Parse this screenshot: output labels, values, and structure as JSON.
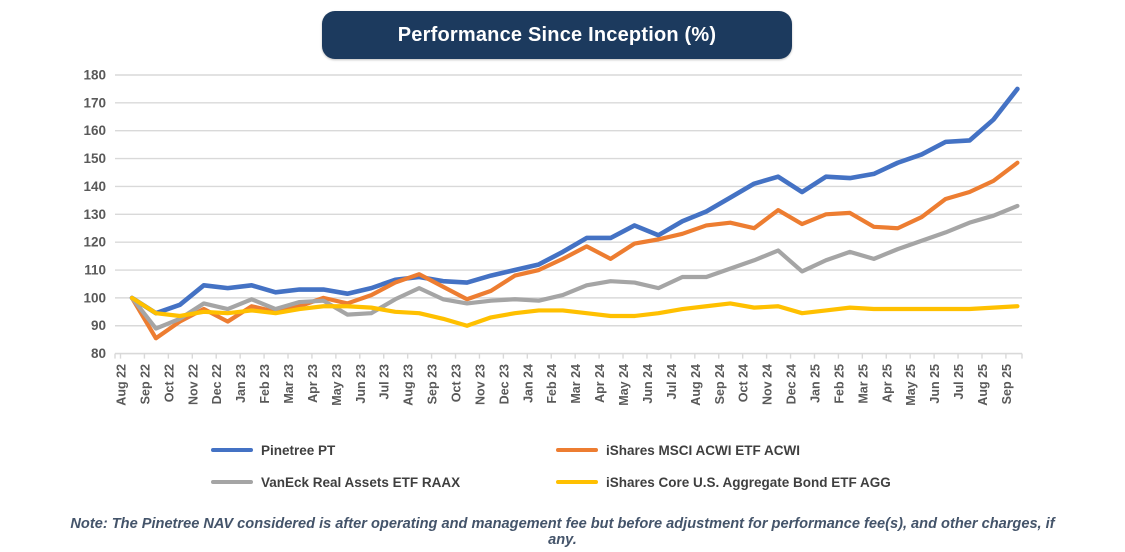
{
  "title": {
    "text": "Performance Since Inception (%)"
  },
  "note": "Note: The Pinetree NAV considered is after operating and management fee but before adjustment for performance fee(s), and other charges, if any.",
  "colors": {
    "title_bg": "#1C3A5E",
    "axis_text": "#595959",
    "gridline": "#D9D9D9",
    "note_text": "#44546A",
    "background": "#FFFFFF"
  },
  "chart_data": {
    "type": "line",
    "title": "Performance Since Inception (%)",
    "xlabel": "",
    "ylabel": "",
    "ylim": [
      80,
      180
    ],
    "y_tick_step": 10,
    "grid": true,
    "legend_position": "bottom",
    "categories": [
      "Aug 22",
      "Sep 22",
      "Oct 22",
      "Nov 22",
      "Dec 22",
      "Jan 23",
      "Feb 23",
      "Mar 23",
      "Apr 23",
      "May 23",
      "Jun 23",
      "Jul 23",
      "Aug 23",
      "Sep 23",
      "Oct 23",
      "Nov 23",
      "Dec 23",
      "Jan 24",
      "Feb 24",
      "Mar 24",
      "Apr 24",
      "May 24",
      "Jun 24",
      "Jul 24",
      "Aug 24",
      "Sep 24",
      "Oct 24",
      "Nov 24",
      "Dec 24",
      "Jan 25",
      "Feb 25",
      "Mar 25",
      "Apr 25",
      "May 25",
      "Jun 25",
      "Jul 25",
      "Aug 25",
      "Sep 25"
    ],
    "series": [
      {
        "name": "Pinetree PT",
        "color": "#4472C4",
        "values": [
          100,
          94.5,
          97.5,
          104.5,
          103.5,
          104.5,
          102,
          103,
          103,
          101.5,
          103.5,
          106.5,
          107.5,
          106,
          105.5,
          108,
          110,
          112,
          116.5,
          121.5,
          121.5,
          126,
          122.5,
          127.5,
          131,
          136,
          141,
          143.5,
          138,
          143.5,
          143,
          144.5,
          148.5,
          151.5,
          156,
          156.5,
          164,
          175
        ]
      },
      {
        "name": "iShares MSCI ACWI ETF ACWI",
        "color": "#ED7D31",
        "values": [
          100,
          85.5,
          91.5,
          96,
          91.5,
          97,
          95,
          97,
          100,
          98,
          101,
          105.5,
          108.5,
          104,
          99.5,
          102.5,
          108,
          110,
          114,
          118.5,
          114,
          119.5,
          121,
          123,
          126,
          127,
          125,
          131.5,
          126.5,
          130,
          130.5,
          125.5,
          125,
          129,
          135.5,
          138,
          142,
          148.5
        ]
      },
      {
        "name": "VanEck Real Assets ETF RAAX",
        "color": "#A5A5A5",
        "values": [
          100,
          89,
          92.5,
          98,
          96,
          99.5,
          96,
          98.5,
          99,
          94,
          94.5,
          99.5,
          103.5,
          99.5,
          98,
          99,
          99.5,
          99,
          101,
          104.5,
          106,
          105.5,
          103.5,
          107.5,
          107.5,
          110.5,
          113.5,
          117,
          109.5,
          113.5,
          116.5,
          114,
          117.5,
          120.5,
          123.5,
          127,
          129.5,
          133
        ]
      },
      {
        "name": "iShares Core U.S. Aggregate Bond ETF AGG",
        "color": "#FFC000",
        "values": [
          100,
          94.5,
          93.5,
          95,
          94.5,
          95.5,
          94.5,
          96,
          97,
          97,
          96.5,
          95,
          94.5,
          92.5,
          90,
          93,
          94.5,
          95.5,
          95.5,
          94.5,
          93.5,
          93.5,
          94.5,
          96,
          97,
          98,
          96.5,
          97,
          94.5,
          95.5,
          96.5,
          96,
          96,
          96,
          96,
          96,
          96.5,
          97
        ]
      }
    ]
  }
}
